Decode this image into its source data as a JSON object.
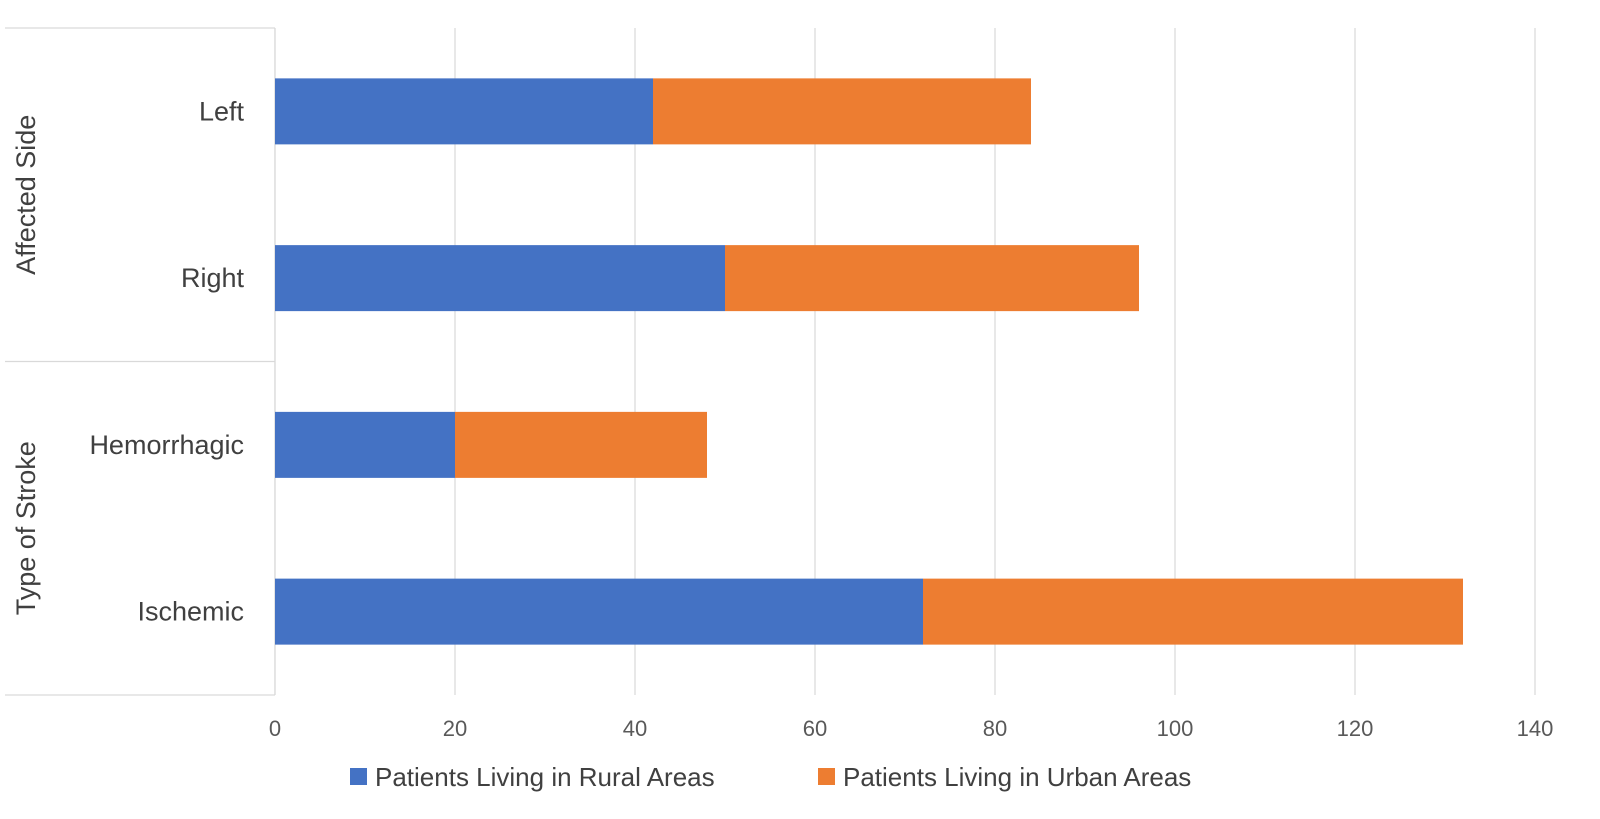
{
  "chart_data": {
    "type": "bar",
    "orientation": "horizontal",
    "stacked": true,
    "categories": [
      "Left",
      "Right",
      "Hemorrhagic",
      "Ischemic"
    ],
    "groups": [
      {
        "label": "Affected Side",
        "categories": [
          "Left",
          "Right"
        ]
      },
      {
        "label": "Type of Stroke",
        "categories": [
          "Hemorrhagic",
          "Ischemic"
        ]
      }
    ],
    "series": [
      {
        "name": "Patients Living in Rural Areas",
        "color": "#4472C4",
        "values": [
          42,
          50,
          20,
          72
        ]
      },
      {
        "name": "Patients Living in Urban Areas",
        "color": "#ED7D31",
        "values": [
          42,
          46,
          28,
          60
        ]
      }
    ],
    "xlim": [
      0,
      140
    ],
    "xticks": [
      0,
      20,
      40,
      60,
      80,
      100,
      120,
      140
    ],
    "grid": true,
    "legend_position": "bottom",
    "title": "",
    "xlabel": "",
    "ylabel": ""
  }
}
